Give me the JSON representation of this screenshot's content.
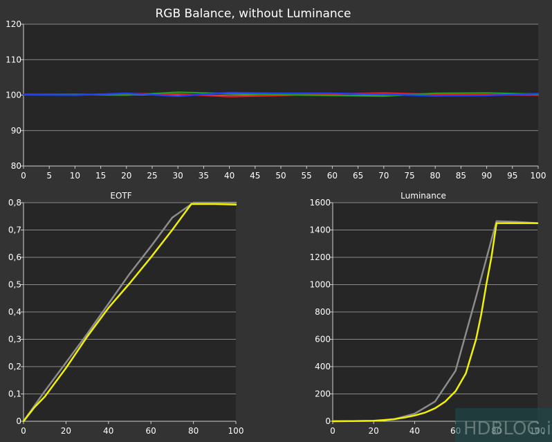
{
  "chart_data": [
    {
      "type": "line",
      "title": "RGB Balance, without Luminance",
      "xlabel": "",
      "ylabel": "",
      "xlim": [
        0,
        100
      ],
      "ylim": [
        80,
        120
      ],
      "x_ticks": [
        "0",
        "5",
        "10",
        "15",
        "20",
        "25",
        "30",
        "35",
        "40",
        "45",
        "50",
        "55",
        "60",
        "65",
        "70",
        "75",
        "80",
        "85",
        "90",
        "95",
        "100"
      ],
      "y_ticks": [
        "80",
        "90",
        "100",
        "110",
        "120"
      ],
      "grid": true,
      "series": [
        {
          "color": "#e02020",
          "x": [
            0,
            10,
            20,
            30,
            40,
            50,
            60,
            70,
            80,
            90,
            100
          ],
          "y": [
            100.2,
            100.1,
            100.4,
            100.3,
            99.6,
            99.9,
            100.3,
            100.6,
            100.2,
            100.1,
            100.0
          ]
        },
        {
          "color": "#20a020",
          "x": [
            0,
            10,
            20,
            30,
            40,
            50,
            60,
            70,
            80,
            90,
            100
          ],
          "y": [
            100.1,
            100.2,
            100.0,
            100.8,
            100.4,
            100.1,
            99.9,
            99.7,
            100.5,
            100.6,
            100.3
          ]
        },
        {
          "color": "#2040ff",
          "x": [
            0,
            10,
            20,
            30,
            40,
            50,
            60,
            70,
            80,
            90,
            100
          ],
          "y": [
            100.1,
            100.0,
            100.5,
            99.7,
            100.7,
            100.5,
            100.5,
            100.2,
            99.8,
            99.9,
            100.4
          ]
        }
      ]
    },
    {
      "type": "line",
      "title": "EOTF",
      "xlabel": "",
      "ylabel": "",
      "xlim": [
        0,
        100
      ],
      "ylim": [
        0,
        0.8
      ],
      "x_ticks": [
        "0",
        "20",
        "40",
        "60",
        "80",
        "100"
      ],
      "y_ticks": [
        "0",
        "0,1",
        "0,2",
        "0,3",
        "0,4",
        "0,5",
        "0,6",
        "0,7",
        "0,8"
      ],
      "grid": true,
      "series": [
        {
          "color": "#8c8c8c",
          "x": [
            0,
            10,
            20,
            30,
            40,
            50,
            60,
            70,
            80,
            90,
            100
          ],
          "y": [
            0,
            0.11,
            0.215,
            0.32,
            0.43,
            0.54,
            0.64,
            0.745,
            0.8,
            0.8,
            0.8
          ]
        },
        {
          "color": "#f2f200",
          "x": [
            0,
            5,
            10,
            20,
            30,
            40,
            50,
            60,
            70,
            79,
            80,
            90,
            100
          ],
          "y": [
            0,
            0.05,
            0.09,
            0.195,
            0.31,
            0.415,
            0.505,
            0.6,
            0.7,
            0.795,
            0.795,
            0.795,
            0.793
          ]
        }
      ]
    },
    {
      "type": "line",
      "title": "Luminance",
      "xlabel": "",
      "ylabel": "",
      "xlim": [
        0,
        100
      ],
      "ylim": [
        0,
        1600
      ],
      "x_ticks": [
        "0",
        "20",
        "40",
        "60",
        "80",
        "100"
      ],
      "y_ticks": [
        "0",
        "200",
        "400",
        "600",
        "800",
        "1000",
        "1200",
        "1400",
        "1600"
      ],
      "grid": true,
      "series": [
        {
          "color": "#8c8c8c",
          "x": [
            0,
            10,
            20,
            30,
            40,
            50,
            60,
            70,
            80,
            90,
            100
          ],
          "y": [
            0,
            1,
            4,
            15,
            55,
            145,
            370,
            910,
            1465,
            1460,
            1450
          ]
        },
        {
          "color": "#f2f200",
          "x": [
            0,
            10,
            20,
            25,
            30,
            35,
            40,
            45,
            50,
            55,
            60,
            65,
            70,
            72.5,
            75,
            77.5,
            80,
            80.2,
            90,
            100
          ],
          "y": [
            0,
            1,
            3,
            8,
            15,
            27,
            42,
            63,
            95,
            145,
            220,
            350,
            600,
            780,
            1000,
            1200,
            1450,
            1450,
            1450,
            1450
          ]
        }
      ]
    }
  ],
  "watermark": {
    "text": "HDBLOG.it"
  }
}
